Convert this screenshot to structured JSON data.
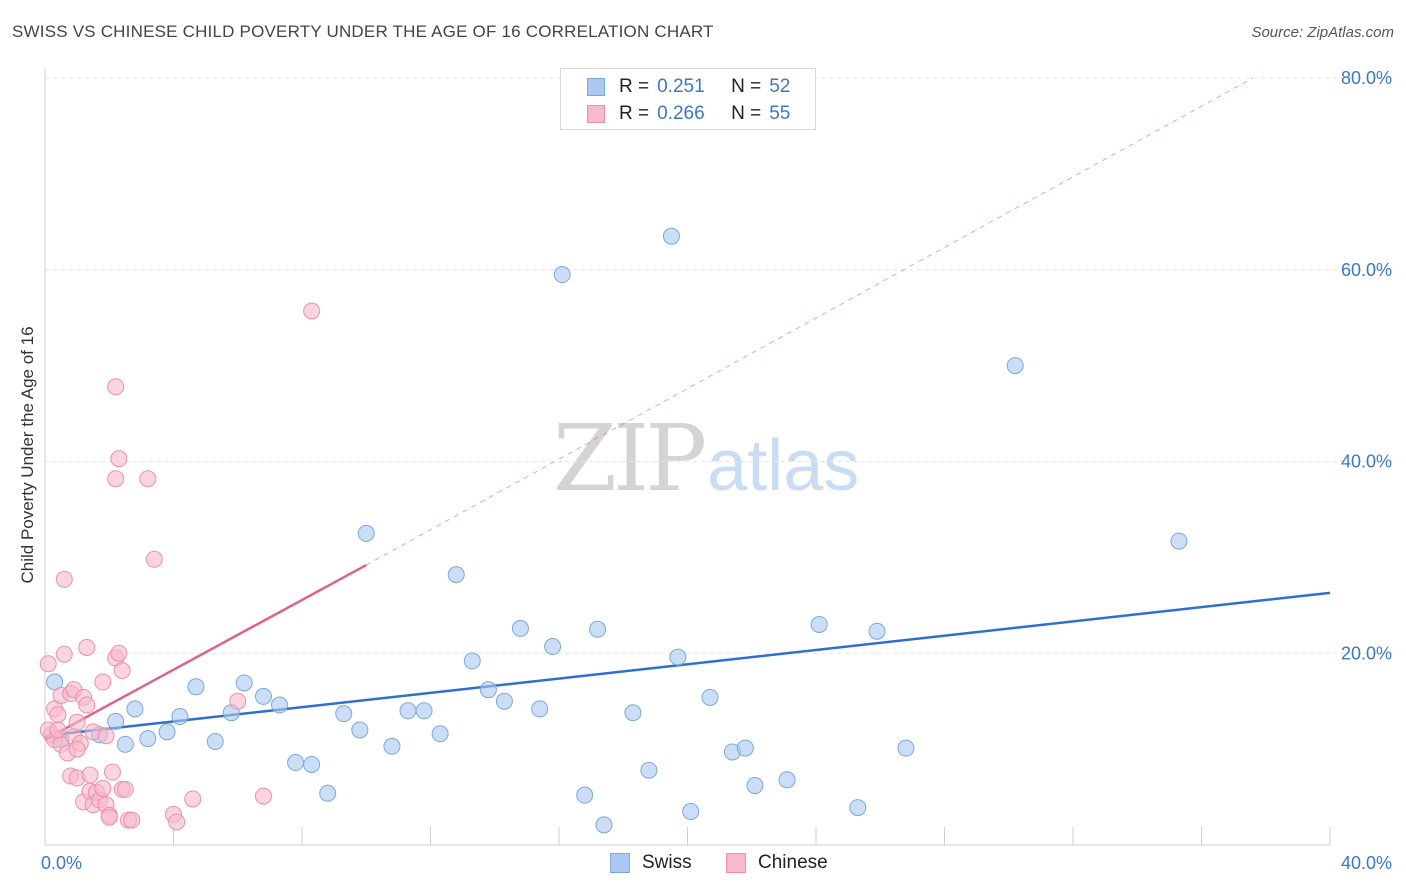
{
  "header": {
    "title": "SWISS VS CHINESE CHILD POVERTY UNDER THE AGE OF 16 CORRELATION CHART",
    "source": "Source: ZipAtlas.com"
  },
  "watermark": {
    "zip": "ZIP",
    "atlas": "atlas"
  },
  "legend": {
    "swiss": {
      "r_label": "R =",
      "r_value": "0.251",
      "n_label": "N =",
      "n_value": "52"
    },
    "chinese": {
      "r_label": "R =",
      "r_value": "0.266",
      "n_label": "N =",
      "n_value": "55"
    }
  },
  "bottom_legend": {
    "swiss": "Swiss",
    "chinese": "Chinese"
  },
  "colors": {
    "swiss_fill": "#aac8f0",
    "swiss_stroke": "#7aa8e0",
    "swiss_line": "#2f6fd0",
    "chinese_fill": "#f7b9cc",
    "chinese_stroke": "#ee8fab",
    "chinese_line": "#e0628c",
    "tick_text": "#3a78c9",
    "grid": "#e4e4e4"
  },
  "chart_data": {
    "type": "scatter",
    "title": "SWISS VS CHINESE CHILD POVERTY UNDER THE AGE OF 16 CORRELATION CHART",
    "xlabel": "",
    "ylabel": "Child Poverty Under the Age of 16",
    "xlim": [
      0,
      40
    ],
    "ylim": [
      0,
      80
    ],
    "x_tick_labels": [
      "0.0%",
      "40.0%"
    ],
    "y_ticks": [
      20,
      40,
      60,
      80
    ],
    "y_tick_labels": [
      "20.0%",
      "40.0%",
      "60.0%",
      "80.0%"
    ],
    "grid": true,
    "legend_position": "top-center",
    "series": [
      {
        "name": "Swiss",
        "points": [
          [
            0.3,
            17.0
          ],
          [
            1.7,
            11.5
          ],
          [
            2.2,
            12.9
          ],
          [
            2.8,
            14.2
          ],
          [
            3.2,
            11.1
          ],
          [
            3.8,
            11.8
          ],
          [
            4.2,
            13.4
          ],
          [
            4.7,
            16.5
          ],
          [
            5.3,
            10.8
          ],
          [
            5.8,
            13.8
          ],
          [
            6.2,
            16.9
          ],
          [
            6.8,
            15.5
          ],
          [
            7.3,
            14.6
          ],
          [
            7.8,
            8.6
          ],
          [
            8.3,
            8.4
          ],
          [
            8.8,
            5.4
          ],
          [
            9.3,
            13.7
          ],
          [
            9.8,
            12.0
          ],
          [
            10.0,
            32.5
          ],
          [
            10.8,
            10.3
          ],
          [
            11.3,
            14.0
          ],
          [
            11.8,
            14.0
          ],
          [
            12.3,
            11.6
          ],
          [
            12.8,
            28.2
          ],
          [
            13.3,
            19.2
          ],
          [
            13.8,
            16.2
          ],
          [
            14.3,
            15.0
          ],
          [
            14.8,
            22.6
          ],
          [
            15.4,
            14.2
          ],
          [
            15.8,
            20.7
          ],
          [
            16.1,
            59.5
          ],
          [
            16.8,
            5.2
          ],
          [
            17.2,
            22.5
          ],
          [
            17.4,
            2.1
          ],
          [
            18.3,
            13.8
          ],
          [
            18.8,
            7.8
          ],
          [
            19.5,
            63.5
          ],
          [
            19.7,
            19.6
          ],
          [
            20.1,
            3.5
          ],
          [
            20.7,
            15.4
          ],
          [
            21.4,
            9.7
          ],
          [
            21.8,
            10.1
          ],
          [
            22.1,
            6.2
          ],
          [
            23.1,
            6.8
          ],
          [
            24.1,
            23.0
          ],
          [
            25.3,
            3.9
          ],
          [
            25.9,
            22.3
          ],
          [
            26.8,
            10.1
          ],
          [
            30.2,
            50.0
          ],
          [
            35.3,
            31.7
          ],
          [
            0.5,
            11.0
          ],
          [
            2.5,
            10.5
          ]
        ]
      },
      {
        "name": "Chinese",
        "points": [
          [
            0.1,
            18.9
          ],
          [
            0.2,
            11.5
          ],
          [
            0.3,
            14.2
          ],
          [
            0.3,
            11.0
          ],
          [
            0.4,
            13.6
          ],
          [
            0.5,
            15.6
          ],
          [
            0.5,
            10.5
          ],
          [
            0.6,
            27.7
          ],
          [
            0.6,
            19.9
          ],
          [
            0.7,
            9.6
          ],
          [
            0.8,
            15.8
          ],
          [
            0.8,
            7.2
          ],
          [
            0.9,
            16.2
          ],
          [
            0.9,
            11.3
          ],
          [
            1.0,
            12.8
          ],
          [
            1.0,
            7.0
          ],
          [
            1.1,
            10.6
          ],
          [
            1.2,
            15.4
          ],
          [
            1.2,
            4.5
          ],
          [
            1.3,
            20.6
          ],
          [
            1.3,
            14.6
          ],
          [
            1.4,
            7.3
          ],
          [
            1.4,
            5.6
          ],
          [
            1.5,
            4.2
          ],
          [
            1.6,
            5.5
          ],
          [
            1.7,
            4.7
          ],
          [
            1.5,
            11.8
          ],
          [
            1.8,
            17.0
          ],
          [
            1.9,
            11.4
          ],
          [
            1.8,
            5.9
          ],
          [
            1.9,
            4.2
          ],
          [
            2.0,
            3.1
          ],
          [
            2.0,
            2.9
          ],
          [
            2.1,
            7.6
          ],
          [
            2.2,
            19.5
          ],
          [
            2.2,
            38.2
          ],
          [
            2.3,
            20.0
          ],
          [
            2.4,
            5.8
          ],
          [
            2.2,
            47.8
          ],
          [
            2.3,
            40.3
          ],
          [
            2.4,
            18.2
          ],
          [
            2.5,
            5.8
          ],
          [
            2.6,
            2.6
          ],
          [
            2.7,
            2.6
          ],
          [
            3.2,
            38.2
          ],
          [
            3.4,
            29.8
          ],
          [
            4.0,
            3.2
          ],
          [
            4.1,
            2.4
          ],
          [
            4.6,
            4.8
          ],
          [
            6.0,
            15.0
          ],
          [
            6.8,
            5.1
          ],
          [
            8.3,
            55.7
          ],
          [
            0.1,
            12.0
          ],
          [
            0.4,
            12.0
          ],
          [
            1.0,
            10.0
          ]
        ]
      }
    ],
    "trend_lines": [
      {
        "series": "Swiss",
        "x": [
          0,
          40
        ],
        "y": [
          11.4,
          26.3
        ],
        "style": "solid"
      },
      {
        "series": "Chinese",
        "x": [
          0,
          10.0
        ],
        "y": [
          11.0,
          29.2
        ],
        "style": "solid"
      },
      {
        "series": "Chinese",
        "x": [
          10.0,
          37.6
        ],
        "y": [
          29.2,
          80.0
        ],
        "style": "dashed"
      }
    ]
  }
}
